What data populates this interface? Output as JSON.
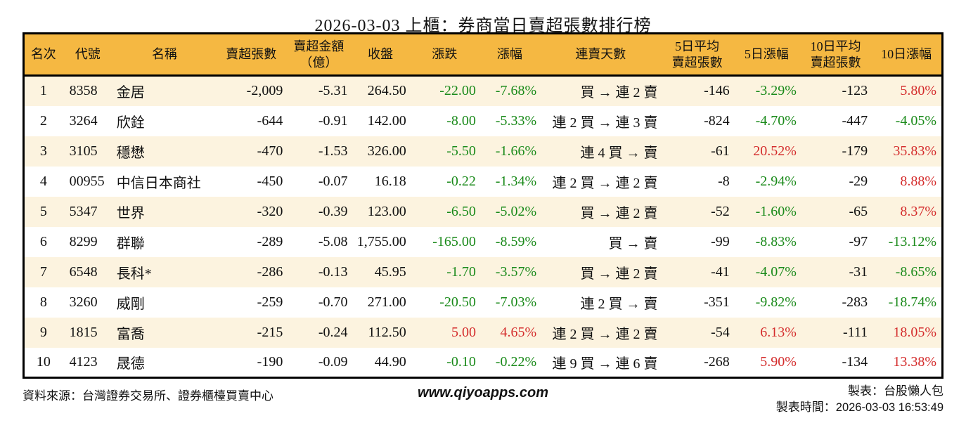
{
  "title": "2026-03-03 上櫃：券商當日賣超張數排行榜",
  "colors": {
    "header_bg": "#f5b842",
    "row_alt_bg": "#fcf3df",
    "up_red": "#d42c2c",
    "down_green": "#1a8a1a",
    "border": "#000000"
  },
  "table": {
    "headers": [
      "名次",
      "代號",
      "名稱",
      "賣超張數",
      "賣超金額\n（億）",
      "收盤",
      "漲跌",
      "漲幅",
      "連賣天數",
      "5日平均\n賣超張數",
      "5日漲幅",
      "10日平均\n賣超張數",
      "10日漲幅"
    ],
    "rows": [
      {
        "rank": "1",
        "code": "8358",
        "name": "金居",
        "net_sell": "-2,009",
        "amount": "-5.31",
        "close": "264.50",
        "change": "-22.00",
        "change_dir": "down",
        "pct": "-7.68%",
        "pct_dir": "down",
        "streak": "買 → 連 2 賣",
        "avg5": "-146",
        "pct5": "-3.29%",
        "pct5_dir": "down",
        "avg10": "-123",
        "pct10": "5.80%",
        "pct10_dir": "up"
      },
      {
        "rank": "2",
        "code": "3264",
        "name": "欣銓",
        "net_sell": "-644",
        "amount": "-0.91",
        "close": "142.00",
        "change": "-8.00",
        "change_dir": "down",
        "pct": "-5.33%",
        "pct_dir": "down",
        "streak": "連 2 買 → 連 3 賣",
        "avg5": "-824",
        "pct5": "-4.70%",
        "pct5_dir": "down",
        "avg10": "-447",
        "pct10": "-4.05%",
        "pct10_dir": "down"
      },
      {
        "rank": "3",
        "code": "3105",
        "name": "穩懋",
        "net_sell": "-470",
        "amount": "-1.53",
        "close": "326.00",
        "change": "-5.50",
        "change_dir": "down",
        "pct": "-1.66%",
        "pct_dir": "down",
        "streak": "連 4 買 → 賣",
        "avg5": "-61",
        "pct5": "20.52%",
        "pct5_dir": "up",
        "avg10": "-179",
        "pct10": "35.83%",
        "pct10_dir": "up"
      },
      {
        "rank": "4",
        "code": "00955",
        "name": "中信日本商社",
        "net_sell": "-450",
        "amount": "-0.07",
        "close": "16.18",
        "change": "-0.22",
        "change_dir": "down",
        "pct": "-1.34%",
        "pct_dir": "down",
        "streak": "連 2 買 → 連 2 賣",
        "avg5": "-8",
        "pct5": "-2.94%",
        "pct5_dir": "down",
        "avg10": "-29",
        "pct10": "8.88%",
        "pct10_dir": "up"
      },
      {
        "rank": "5",
        "code": "5347",
        "name": "世界",
        "net_sell": "-320",
        "amount": "-0.39",
        "close": "123.00",
        "change": "-6.50",
        "change_dir": "down",
        "pct": "-5.02%",
        "pct_dir": "down",
        "streak": "買 → 連 2 賣",
        "avg5": "-52",
        "pct5": "-1.60%",
        "pct5_dir": "down",
        "avg10": "-65",
        "pct10": "8.37%",
        "pct10_dir": "up"
      },
      {
        "rank": "6",
        "code": "8299",
        "name": "群聯",
        "net_sell": "-289",
        "amount": "-5.08",
        "close": "1,755.00",
        "change": "-165.00",
        "change_dir": "down",
        "pct": "-8.59%",
        "pct_dir": "down",
        "streak": "買 → 賣",
        "avg5": "-99",
        "pct5": "-8.83%",
        "pct5_dir": "down",
        "avg10": "-97",
        "pct10": "-13.12%",
        "pct10_dir": "down"
      },
      {
        "rank": "7",
        "code": "6548",
        "name": "長科*",
        "net_sell": "-286",
        "amount": "-0.13",
        "close": "45.95",
        "change": "-1.70",
        "change_dir": "down",
        "pct": "-3.57%",
        "pct_dir": "down",
        "streak": "買 → 連 2 賣",
        "avg5": "-41",
        "pct5": "-4.07%",
        "pct5_dir": "down",
        "avg10": "-31",
        "pct10": "-8.65%",
        "pct10_dir": "down"
      },
      {
        "rank": "8",
        "code": "3260",
        "name": "威剛",
        "net_sell": "-259",
        "amount": "-0.70",
        "close": "271.00",
        "change": "-20.50",
        "change_dir": "down",
        "pct": "-7.03%",
        "pct_dir": "down",
        "streak": "連 2 買 → 賣",
        "avg5": "-351",
        "pct5": "-9.82%",
        "pct5_dir": "down",
        "avg10": "-283",
        "pct10": "-18.74%",
        "pct10_dir": "down"
      },
      {
        "rank": "9",
        "code": "1815",
        "name": "富喬",
        "net_sell": "-215",
        "amount": "-0.24",
        "close": "112.50",
        "change": "5.00",
        "change_dir": "up",
        "pct": "4.65%",
        "pct_dir": "up",
        "streak": "連 2 買 → 連 2 賣",
        "avg5": "-54",
        "pct5": "6.13%",
        "pct5_dir": "up",
        "avg10": "-111",
        "pct10": "18.05%",
        "pct10_dir": "up"
      },
      {
        "rank": "10",
        "code": "4123",
        "name": "晟德",
        "net_sell": "-190",
        "amount": "-0.09",
        "close": "44.90",
        "change": "-0.10",
        "change_dir": "down",
        "pct": "-0.22%",
        "pct_dir": "down",
        "streak": "連 9 買 → 連 6 賣",
        "avg5": "-268",
        "pct5": "5.90%",
        "pct5_dir": "up",
        "avg10": "-134",
        "pct10": "13.38%",
        "pct10_dir": "up"
      }
    ]
  },
  "footer": {
    "source": "資料來源：台灣證券交易所、證券櫃檯買賣中心",
    "website": "www.qiyoapps.com",
    "author": "製表：台股懶人包",
    "time_label": "製表時間：",
    "time_value": "2026-03-03 16:53:49"
  }
}
